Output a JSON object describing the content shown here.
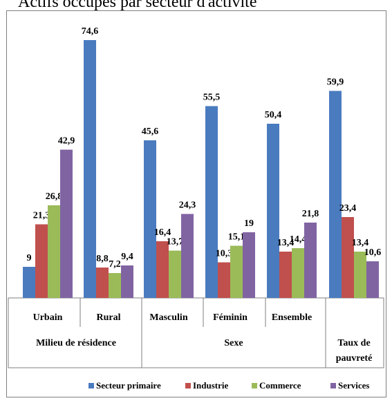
{
  "header": {
    "text": "Actifs occupés par secteur d'activité"
  },
  "chart_data": {
    "type": "bar",
    "title": "Actifs occupés par secteur d'activité",
    "categories": [
      "Urbain",
      "Rural",
      "Masculin",
      "Féminin",
      "Ensemble",
      ""
    ],
    "groups": [
      {
        "label": "Milieu de résidence",
        "categories": [
          "Urbain",
          "Rural"
        ]
      },
      {
        "label": "Sexe",
        "categories": [
          "Masculin",
          "Féminin",
          "Ensemble"
        ]
      },
      {
        "label": "Taux de pauvreté",
        "categories": [
          ""
        ]
      }
    ],
    "series": [
      {
        "name": "Secteur primaire",
        "color": "#4a7bbf",
        "values": [
          9,
          74.6,
          45.6,
          55.5,
          50.4,
          59.9
        ],
        "labels": [
          "9",
          "74,6",
          "45,6",
          "55,5",
          "50,4",
          "59,9"
        ]
      },
      {
        "name": "Industrie",
        "color": "#c0504d",
        "values": [
          21.3,
          8.8,
          16.4,
          10.3,
          13.4,
          23.4
        ],
        "labels": [
          "21,3",
          "8,8",
          "16,4",
          "10,3",
          "13,4",
          "23,4"
        ]
      },
      {
        "name": "Commerce",
        "color": "#9bbb59",
        "values": [
          26.8,
          7.2,
          13.7,
          15.1,
          14.4,
          13.4
        ],
        "labels": [
          "26,8",
          "7,2",
          "13,7",
          "15,1",
          "14,4",
          "13,4"
        ]
      },
      {
        "name": "Services",
        "color": "#8064a2",
        "values": [
          42.9,
          9.4,
          24.3,
          19,
          21.8,
          10.6
        ],
        "labels": [
          "42,9",
          "9,4",
          "24,3",
          "19",
          "21,8",
          "10,6"
        ]
      }
    ],
    "ylim": [
      0,
      80
    ],
    "grid": false,
    "legend_position": "bottom"
  }
}
